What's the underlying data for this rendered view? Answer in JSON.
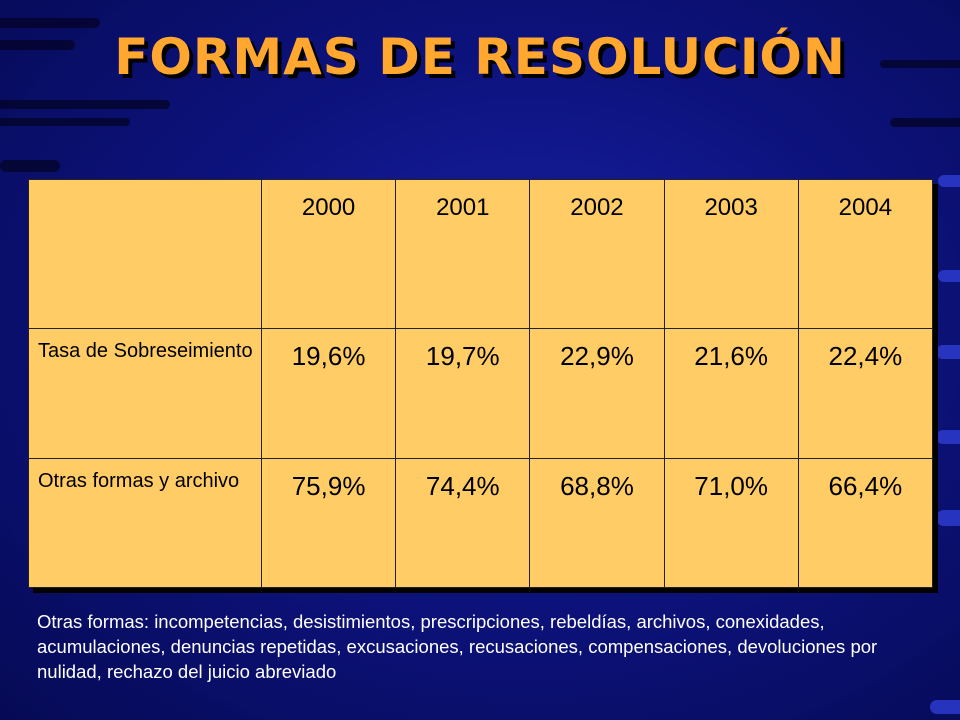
{
  "title": "FORMAS DE RESOLUCIÓN",
  "chart_data": {
    "type": "table",
    "title": "FORMAS DE RESOLUCIÓN",
    "columns": [
      "2000",
      "2001",
      "2002",
      "2003",
      "2004"
    ],
    "rows": [
      {
        "label": "Tasa de Sobreseimiento",
        "values": [
          "19,6%",
          "19,7%",
          "22,9%",
          "21,6%",
          "22,4%"
        ]
      },
      {
        "label": "Otras formas y archivo",
        "values": [
          "75,9%",
          "74,4%",
          "68,8%",
          "71,0%",
          "66,4%"
        ]
      }
    ]
  },
  "footnote": "Otras formas: incompetencias, desistimientos, prescripciones, rebeldías, archivos, conexidades, acumulaciones, denuncias repetidas, excusaciones, recusaciones, compensaciones, devoluciones por nulidad, rechazo del juicio abreviado",
  "colors": {
    "background": "#0d137f",
    "title": "#ffa72e",
    "table_fill": "#ffcc66",
    "footnote_text": "#ffffff"
  }
}
